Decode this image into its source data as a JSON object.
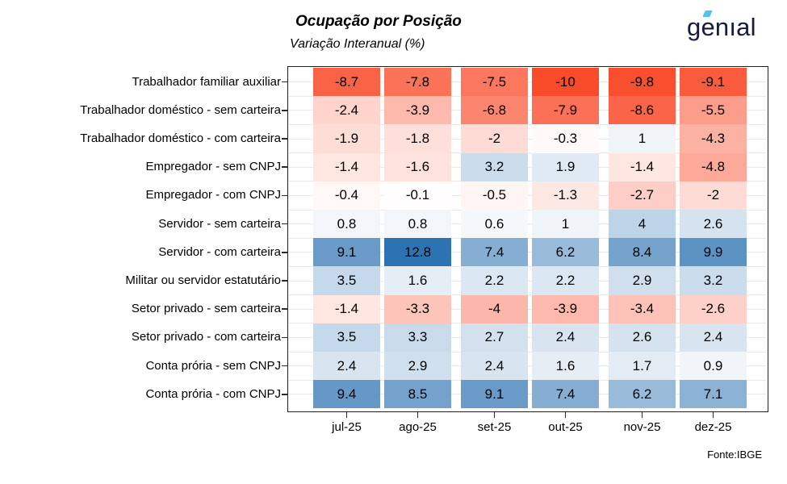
{
  "header": {
    "title": "Ocupação por Posição",
    "subtitle": "Variação Interanual (%)",
    "logo_text": "genıal"
  },
  "footer": {
    "source": "Fonte:IBGE"
  },
  "colors": {
    "logo_navy": "#141B3D",
    "logo_accent": "#55C1EE",
    "gridline": "#E9E9E9",
    "panel_border": "#1f1f1f"
  },
  "chart_data": {
    "type": "heatmap",
    "title": "Ocupação por Posição",
    "subtitle": "Variação Interanual (%)",
    "x": [
      "jul-25",
      "ago-25",
      "set-25",
      "out-25",
      "nov-25",
      "dez-25"
    ],
    "y": [
      "Trabalhador familiar auxiliar",
      "Trabalhador doméstico - sem carteira",
      "Trabalhador doméstico - com carteira",
      "Empregador - sem CNPJ",
      "Empregador - com CNPJ",
      "Servidor - sem carteira",
      "Servidor - com carteira",
      "Militar ou servidor estatutário",
      "Setor privado - sem carteira",
      "Setor privado - com carteira",
      "Conta prória - sem CNPJ",
      "Conta prória - com CNPJ"
    ],
    "values": [
      [
        -8.7,
        -7.8,
        -7.5,
        -10,
        -9.8,
        -9.1
      ],
      [
        -2.4,
        -3.9,
        -6.8,
        -7.9,
        -8.6,
        -5.5
      ],
      [
        -1.9,
        -1.8,
        -2,
        -0.3,
        1,
        -4.3
      ],
      [
        -1.4,
        -1.6,
        3.2,
        1.9,
        -1.4,
        -4.8
      ],
      [
        -0.4,
        -0.1,
        -0.5,
        -1.3,
        -2.7,
        -2
      ],
      [
        0.8,
        0.8,
        0.6,
        1,
        4,
        2.6
      ],
      [
        9.1,
        12.8,
        7.4,
        6.2,
        8.4,
        9.9
      ],
      [
        3.5,
        1.6,
        2.2,
        2.2,
        2.9,
        3.2
      ],
      [
        -1.4,
        -3.3,
        -4,
        -3.9,
        -3.4,
        -2.6
      ],
      [
        3.5,
        3.3,
        2.7,
        2.4,
        2.6,
        2.4
      ],
      [
        2.4,
        2.9,
        2.4,
        1.6,
        1.7,
        0.9
      ],
      [
        9.4,
        8.5,
        9.1,
        7.4,
        6.2,
        7.1
      ]
    ],
    "colorscale": {
      "negative_end": "#F94B2A",
      "mid": "#FFFFFF",
      "positive_end": "#2D73B2",
      "domain_min": -10,
      "domain_max": 12.8
    },
    "grid": true,
    "legend": "none",
    "source": "Fonte:IBGE"
  }
}
